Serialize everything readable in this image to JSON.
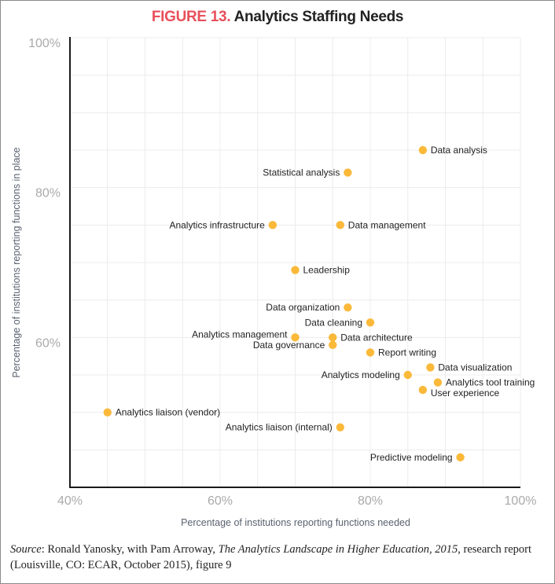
{
  "chart_data": {
    "type": "scatter",
    "title_prefix": "FIGURE 13.",
    "title": "Analytics Staffing Needs",
    "xlabel": "Percentage of institutions reporting functions needed",
    "ylabel": "Percentage of institutions reporting functions in place",
    "xlim": [
      40,
      100
    ],
    "ylim": [
      40,
      100
    ],
    "x_ticks": [
      "40%",
      "60%",
      "80%",
      "100%"
    ],
    "y_ticks": [
      "60%",
      "80%",
      "100%"
    ],
    "grid": true,
    "point_color": "#fbb93a",
    "title_accent_color": "#e8505b",
    "points": [
      {
        "label": "Data analysis",
        "x": 87,
        "y": 85,
        "side": "right"
      },
      {
        "label": "Statistical analysis",
        "x": 77,
        "y": 82,
        "side": "left"
      },
      {
        "label": "Analytics infrastructure",
        "x": 67,
        "y": 75,
        "side": "left"
      },
      {
        "label": "Data management",
        "x": 76,
        "y": 75,
        "side": "right"
      },
      {
        "label": "Leadership",
        "x": 70,
        "y": 69,
        "side": "right"
      },
      {
        "label": "Data organization",
        "x": 77,
        "y": 64,
        "side": "left"
      },
      {
        "label": "Data cleaning",
        "x": 80,
        "y": 62,
        "side": "left"
      },
      {
        "label": "Analytics management",
        "x": 70,
        "y": 60,
        "side": "left"
      },
      {
        "label": "Data architecture",
        "x": 75,
        "y": 60,
        "side": "right"
      },
      {
        "label": "Data governance",
        "x": 75,
        "y": 59,
        "side": "left"
      },
      {
        "label": "Report writing",
        "x": 80,
        "y": 58,
        "side": "right"
      },
      {
        "label": "Data visualization",
        "x": 88,
        "y": 56,
        "side": "right"
      },
      {
        "label": "Analytics modeling",
        "x": 85,
        "y": 55,
        "side": "left"
      },
      {
        "label": "Analytics tool training",
        "x": 89,
        "y": 54,
        "side": "right"
      },
      {
        "label": "User experience",
        "x": 87,
        "y": 53,
        "side": "right"
      },
      {
        "label": "Analytics liaison (vendor)",
        "x": 45,
        "y": 50,
        "side": "right"
      },
      {
        "label": "Analytics liaison (internal)",
        "x": 76,
        "y": 48,
        "side": "left"
      },
      {
        "label": "Predictive modeling",
        "x": 92,
        "y": 44,
        "side": "left"
      }
    ]
  },
  "source": {
    "label": "Source",
    "text_before": ": Ronald Yanosky, with Pam Arroway, ",
    "book_title": "The Analytics Landscape in Higher Education, 2015",
    "text_after": ", research report (Louisville, CO: ECAR, October 2015), figure 9"
  }
}
